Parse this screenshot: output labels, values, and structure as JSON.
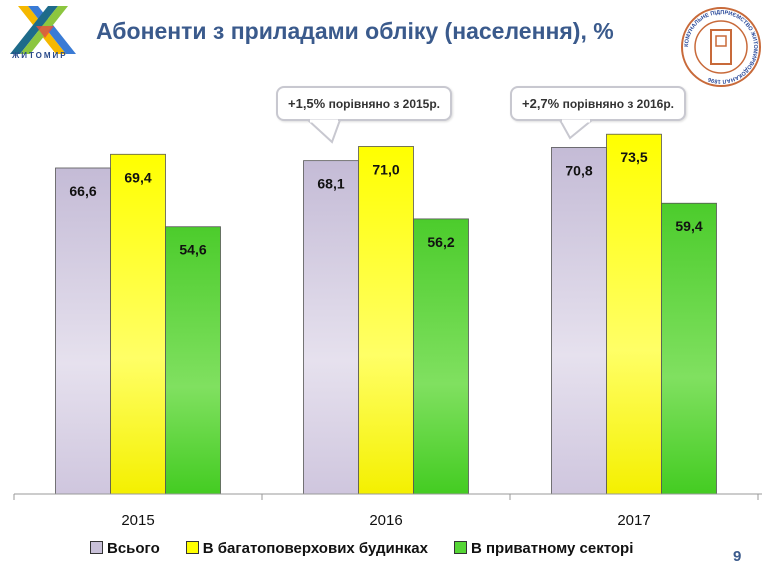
{
  "header": {
    "title": "Абоненти з приладами обліку (населення), %",
    "city_logo_text": "ЖИТОМИР",
    "utility_logo_text": "КОМУНАЛЬНЕ ПІДПРИЄМСТВО ЖИТОМИРВОДОКАНАЛ 1896"
  },
  "callouts": [
    {
      "value": "+1,5%",
      "text": "порівняно з 2015р."
    },
    {
      "value": "+2,7%",
      "text": "порівняно з 2016р."
    }
  ],
  "page_number": "9",
  "colors": {
    "total": "#c8c0d8",
    "multi": "#ffff00",
    "private": "#55d535",
    "title": "#3a5a8c"
  },
  "chart_data": {
    "type": "bar",
    "title": "Абоненти з приладами обліку (населення), %",
    "categories": [
      "2015",
      "2016",
      "2017"
    ],
    "series": [
      {
        "name": "Всього",
        "values": [
          66.6,
          68.1,
          70.8
        ],
        "labels": [
          "66,6",
          "68,1",
          "70,8"
        ]
      },
      {
        "name": "В багатоповерхових будинках",
        "values": [
          69.4,
          71.0,
          73.5
        ],
        "labels": [
          "69,4",
          "71,0",
          "73,5"
        ]
      },
      {
        "name": "В приватному секторі",
        "values": [
          54.6,
          56.2,
          59.4
        ],
        "labels": [
          "54,6",
          "56,2",
          "59,4"
        ]
      }
    ],
    "ylim": [
      0,
      100
    ],
    "grid": false,
    "legend": "bottom"
  }
}
